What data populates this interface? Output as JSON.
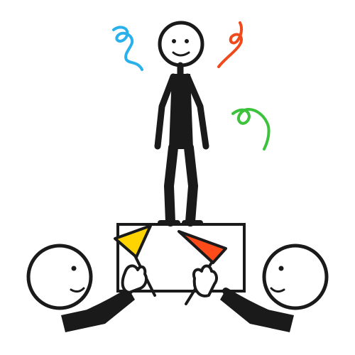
{
  "colors": {
    "background": "#ffffff",
    "outline": "#1a1a1a",
    "confetti_blue": "#2ab0ea",
    "confetti_orange": "#f04a1c",
    "confetti_green": "#3cc23c",
    "flag_yellow": "#ffd400",
    "flag_red": "#ff4a1a",
    "box_fill": "#ffffff"
  },
  "icons": [
    "celebrated-person-icon",
    "platform-box-icon",
    "cheering-person-left-icon",
    "cheering-person-right-icon",
    "yellow-flag-icon",
    "red-flag-icon",
    "confetti-icon"
  ]
}
